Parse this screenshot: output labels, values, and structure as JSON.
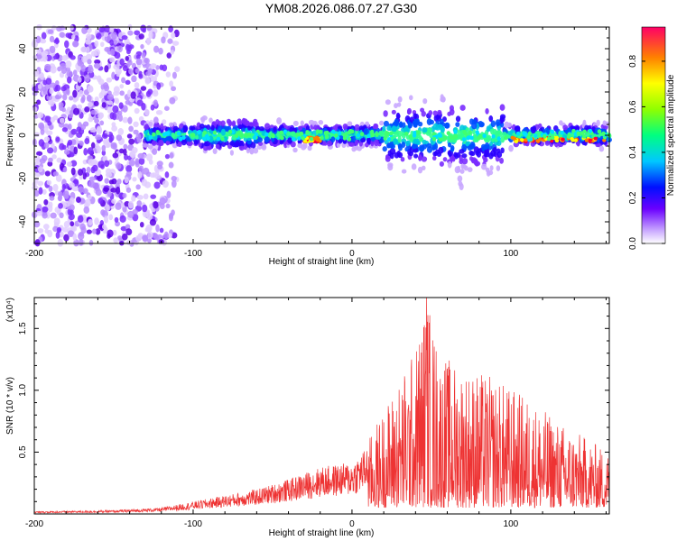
{
  "title": "YM08.2026.086.07.27.G30",
  "chart_data": [
    {
      "type": "heatmap",
      "xlabel": "Height of straight line (km)",
      "ylabel": "Frequency (Hz)",
      "xlim": [
        -200,
        162
      ],
      "ylim": [
        -50,
        50
      ],
      "xticks": [
        -200,
        -100,
        0,
        100
      ],
      "yticks": [
        -40,
        -20,
        0,
        20,
        40
      ],
      "colorbar": {
        "label": "Normalized spectral amplitude",
        "range": [
          0,
          0.95
        ],
        "ticks": [
          0,
          0.2,
          0.4,
          0.6,
          0.8
        ]
      },
      "features": {
        "noise_region_x": [
          -200,
          -120
        ],
        "ridge_center_hz": 0,
        "ridge_x": [
          -130,
          162
        ]
      }
    },
    {
      "type": "line",
      "xlabel": "Height of straight line (km)",
      "ylabel": "SNR (10 * v/v)",
      "y_multiplier": "(x10⁴)",
      "xlim": [
        -200,
        162
      ],
      "ylim": [
        0,
        1.75
      ],
      "xticks": [
        -200,
        -100,
        0,
        100
      ],
      "yticks": [
        0.5,
        1.0,
        1.5
      ],
      "series": [
        {
          "color": "#ee3333",
          "envelope": [
            [
              -200,
              0.02
            ],
            [
              -150,
              0.03
            ],
            [
              -120,
              0.05
            ],
            [
              -100,
              0.1
            ],
            [
              -80,
              0.15
            ],
            [
              -60,
              0.2
            ],
            [
              -40,
              0.28
            ],
            [
              -20,
              0.38
            ],
            [
              0,
              0.42
            ],
            [
              10,
              0.55
            ],
            [
              20,
              0.8
            ],
            [
              30,
              1.05
            ],
            [
              40,
              1.3
            ],
            [
              47,
              1.75
            ],
            [
              55,
              1.25
            ],
            [
              70,
              1.15
            ],
            [
              90,
              1.05
            ],
            [
              110,
              0.9
            ],
            [
              130,
              0.7
            ],
            [
              150,
              0.55
            ],
            [
              162,
              0.45
            ]
          ]
        }
      ]
    }
  ]
}
